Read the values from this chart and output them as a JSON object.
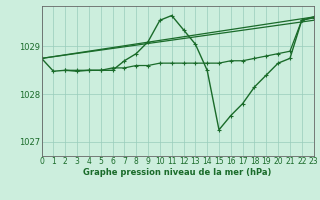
{
  "title": "Graphe pression niveau de la mer (hPa)",
  "background_color": "#cceedd",
  "grid_color": "#99ccbb",
  "line_color": "#1a6b2a",
  "xlim": [
    0,
    23
  ],
  "ylim": [
    1026.7,
    1029.85
  ],
  "xticks": [
    0,
    1,
    2,
    3,
    4,
    5,
    6,
    7,
    8,
    9,
    10,
    11,
    12,
    13,
    14,
    15,
    16,
    17,
    18,
    19,
    20,
    21,
    22,
    23
  ],
  "yticks": [
    1027,
    1028,
    1029
  ],
  "tick_fontsize": 5.5,
  "label_fontsize": 6.0,
  "series": [
    {
      "x": [
        0,
        23
      ],
      "y": [
        1028.75,
        1029.62
      ],
      "lw": 0.9,
      "marker": false
    },
    {
      "x": [
        0,
        23
      ],
      "y": [
        1028.75,
        1029.55
      ],
      "lw": 0.9,
      "marker": false
    },
    {
      "x": [
        2,
        3,
        4,
        5,
        6,
        7,
        8,
        9,
        10,
        11,
        12,
        13,
        14,
        15,
        16,
        17,
        18,
        19,
        20,
        21,
        22,
        23
      ],
      "y": [
        1028.5,
        1028.5,
        1028.5,
        1028.5,
        1028.55,
        1028.55,
        1028.6,
        1028.6,
        1028.65,
        1028.65,
        1028.65,
        1028.65,
        1028.65,
        1028.65,
        1028.7,
        1028.7,
        1028.75,
        1028.8,
        1028.85,
        1028.9,
        1029.55,
        1029.6
      ],
      "lw": 0.9,
      "marker": true
    },
    {
      "x": [
        0,
        1,
        2,
        3,
        4,
        5,
        6,
        7,
        8,
        9,
        10,
        11,
        12,
        13,
        14,
        15,
        16,
        17,
        18,
        19,
        20,
        21,
        22,
        23
      ],
      "y": [
        1028.75,
        1028.48,
        1028.5,
        1028.48,
        1028.5,
        1028.5,
        1028.5,
        1028.7,
        1028.85,
        1029.1,
        1029.55,
        1029.65,
        1029.35,
        1029.05,
        1028.5,
        1027.25,
        1027.55,
        1027.8,
        1028.15,
        1028.4,
        1028.65,
        1028.75,
        1029.55,
        1029.62
      ],
      "lw": 1.0,
      "marker": true
    }
  ]
}
